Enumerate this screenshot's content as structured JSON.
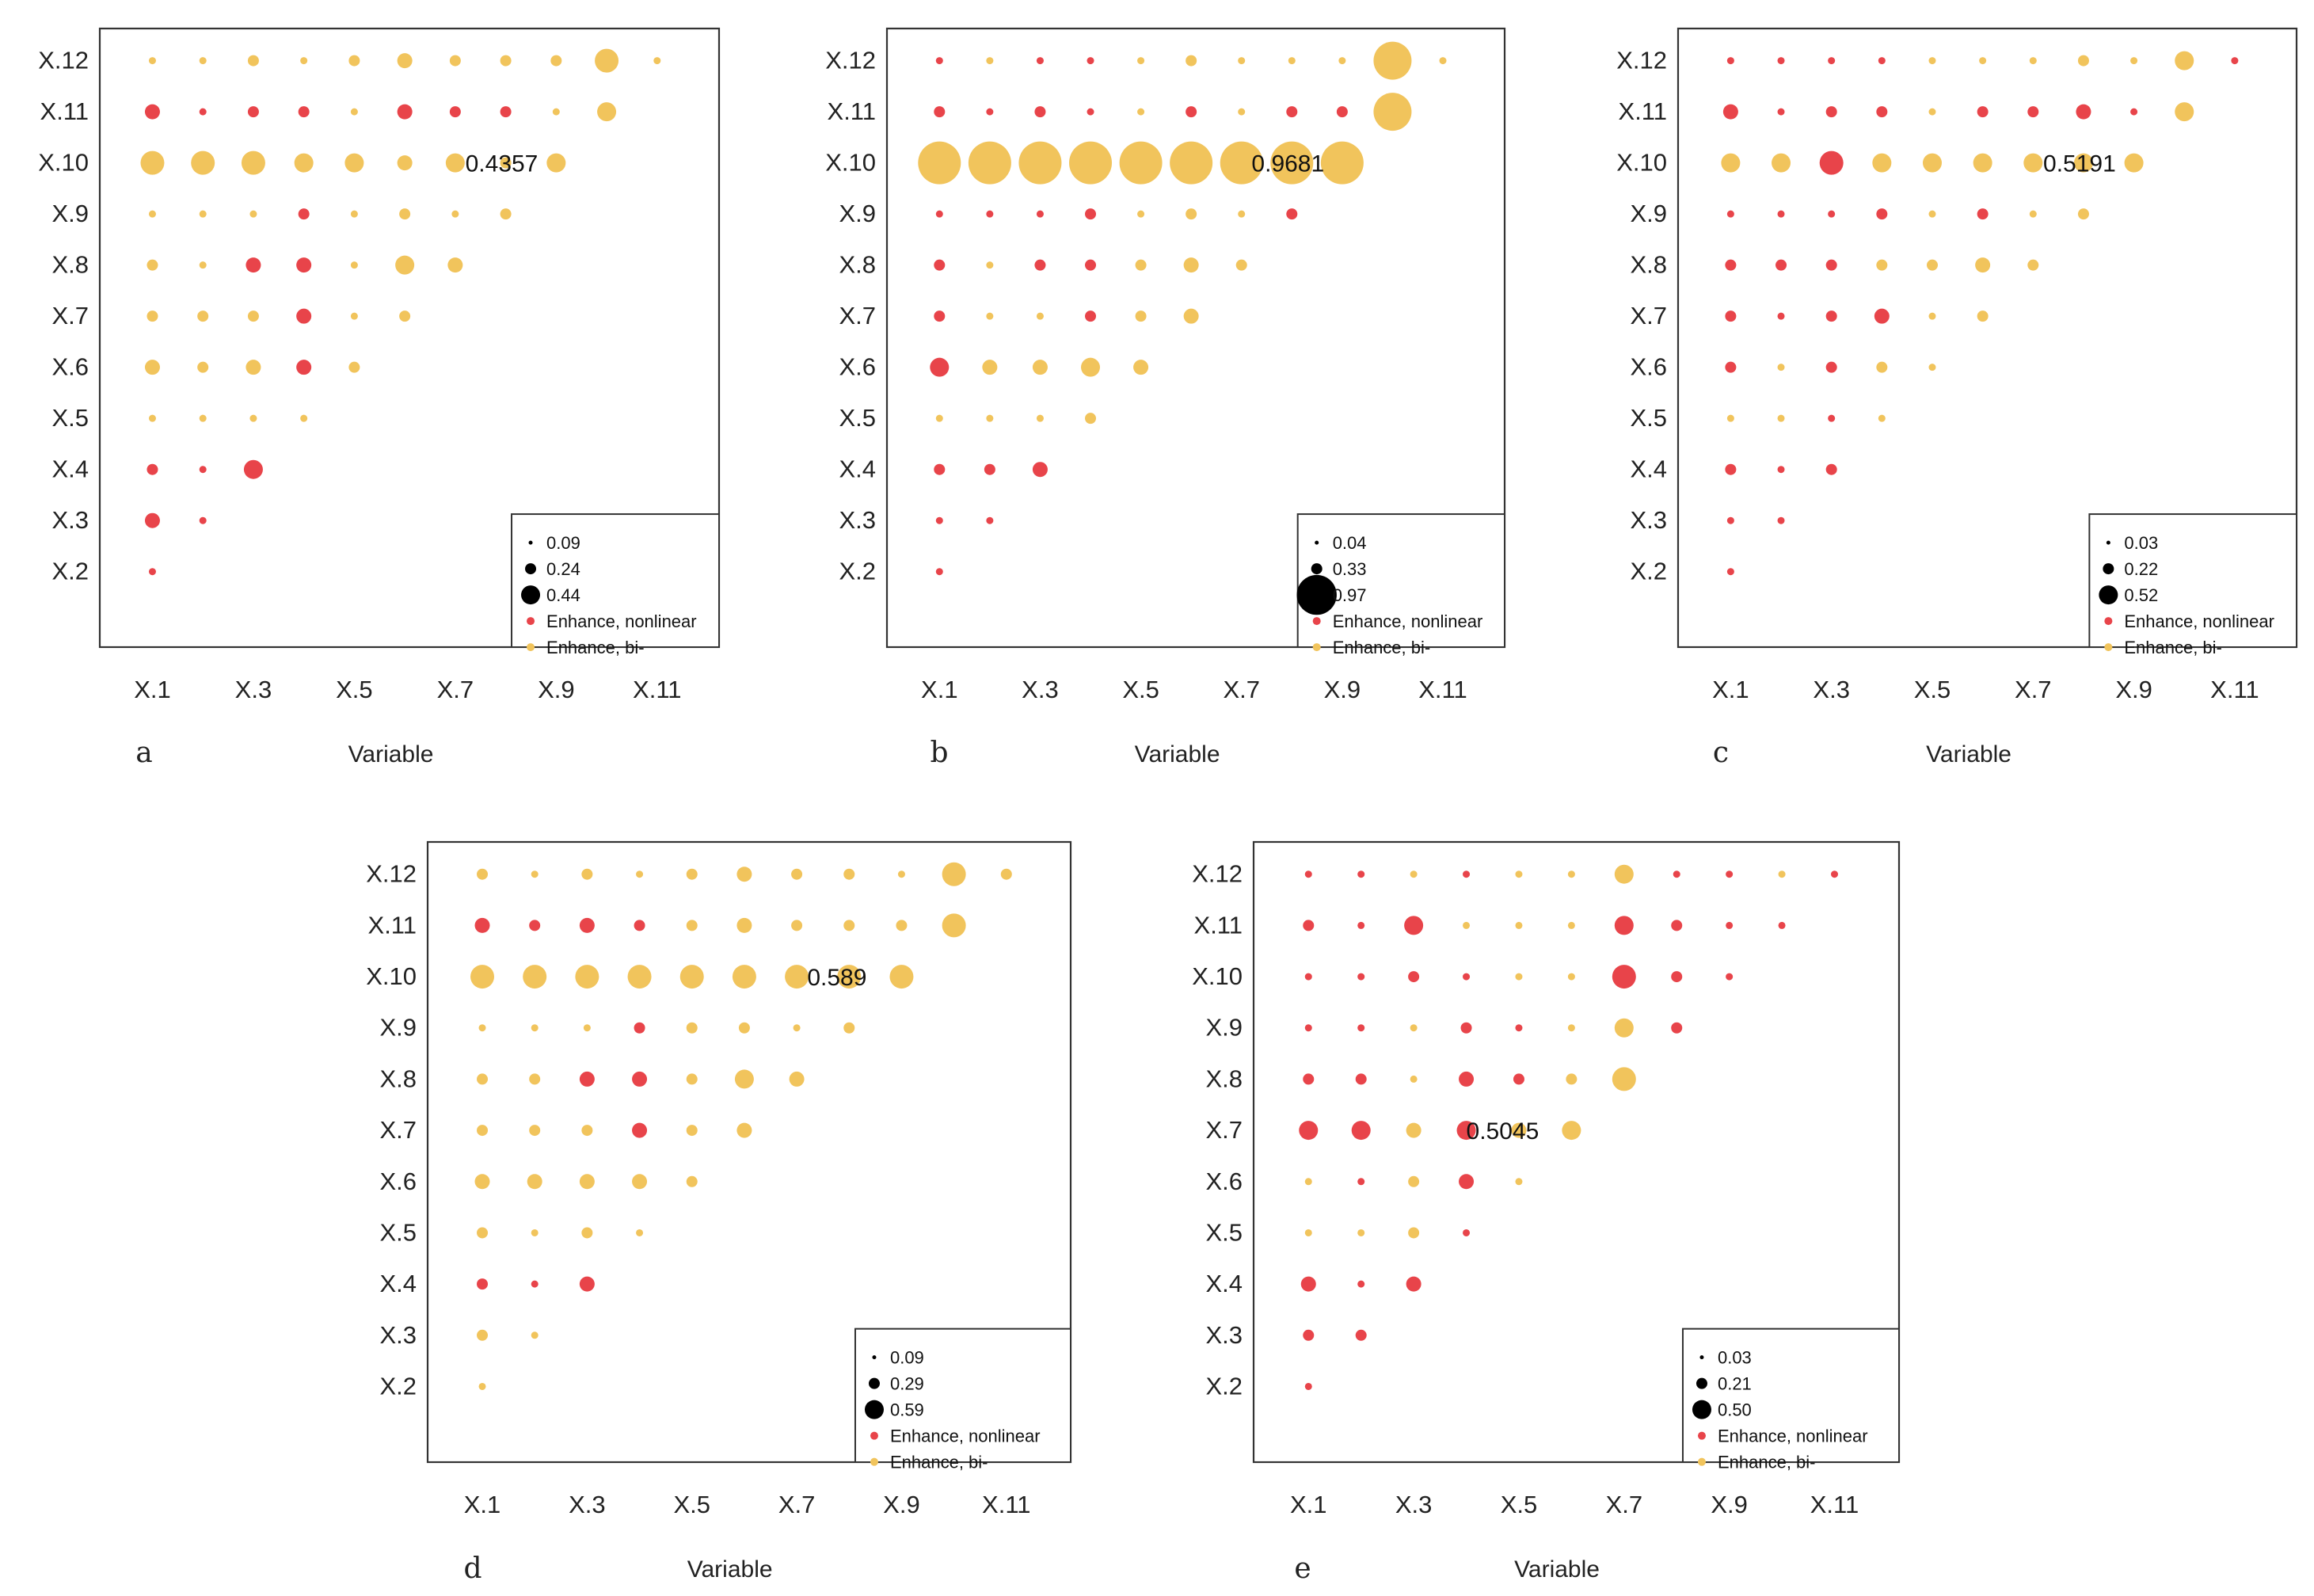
{
  "figure": {
    "colors": {
      "nonlinear": "#e8444a",
      "bi": "#f1c45c",
      "size_key": "#000000"
    },
    "x_axis_label": "Variable"
  },
  "chart_data": [
    {
      "panel": "a",
      "type": "scatter",
      "xlabel": "Variable",
      "x_ticks": [
        "X.1",
        "X.3",
        "X.5",
        "X.7",
        "X.9",
        "X.11"
      ],
      "y_ticks": [
        "X.12",
        "X.11",
        "X.10",
        "X.9",
        "X.8",
        "X.7",
        "X.6",
        "X.5",
        "X.4",
        "X.3",
        "X.2"
      ],
      "annotation": "0.4357",
      "legend": {
        "position": "bottom-right",
        "sizes": [
          "0.09",
          "0.24",
          "0.44"
        ],
        "entries": [
          "Enhance, nonlinear",
          "Enhance, bi-"
        ]
      },
      "rows": [
        {
          "y": 12,
          "c": "YYYYYYYYYYY",
          "s": [
            1,
            1,
            2,
            1,
            2,
            3,
            2,
            2,
            2,
            5,
            1
          ]
        },
        {
          "y": 11,
          "c": "RRRRYRRRYY",
          "s": [
            3,
            1,
            2,
            2,
            1,
            3,
            2,
            2,
            1,
            4
          ]
        },
        {
          "y": 10,
          "c": "YYYYYYYYY",
          "s": [
            5,
            5,
            5,
            4,
            4,
            3,
            4,
            2,
            4
          ]
        },
        {
          "y": 9,
          "c": "YYYRYYYY",
          "s": [
            1,
            1,
            1,
            2,
            1,
            2,
            1,
            2
          ]
        },
        {
          "y": 8,
          "c": "YYRRYYY",
          "s": [
            2,
            1,
            3,
            3,
            1,
            4,
            3
          ]
        },
        {
          "y": 7,
          "c": "YYYRYY",
          "s": [
            2,
            2,
            2,
            3,
            1,
            2
          ]
        },
        {
          "y": 6,
          "c": "YYYRY",
          "s": [
            3,
            2,
            3,
            3,
            2
          ]
        },
        {
          "y": 5,
          "c": "YYYY",
          "s": [
            1,
            1,
            1,
            1
          ]
        },
        {
          "y": 4,
          "c": "RRR",
          "s": [
            2,
            1,
            4
          ]
        },
        {
          "y": 3,
          "c": "RR",
          "s": [
            3,
            1
          ]
        },
        {
          "y": 2,
          "c": "R",
          "s": [
            1
          ]
        }
      ]
    },
    {
      "panel": "b",
      "type": "scatter",
      "xlabel": "Variable",
      "x_ticks": [
        "X.1",
        "X.3",
        "X.5",
        "X.7",
        "X.9",
        "X.11"
      ],
      "y_ticks": [
        "X.12",
        "X.11",
        "X.10",
        "X.9",
        "X.8",
        "X.7",
        "X.6",
        "X.5",
        "X.4",
        "X.3",
        "X.2"
      ],
      "annotation": "0.9681",
      "legend": {
        "position": "bottom-right",
        "sizes": [
          "0.04",
          "0.33",
          "0.97"
        ],
        "entries": [
          "Enhance, nonlinear",
          "Enhance, bi-"
        ]
      },
      "rows": [
        {
          "y": 12,
          "c": "RYRRYYYYYYY",
          "s": [
            1,
            1,
            1,
            1,
            1,
            2,
            1,
            1,
            1,
            8,
            1
          ]
        },
        {
          "y": 11,
          "c": "RRRRYRYRRY",
          "s": [
            2,
            1,
            2,
            1,
            1,
            2,
            1,
            2,
            2,
            8
          ]
        },
        {
          "y": 10,
          "c": "YYYYYYYYY",
          "s": [
            9,
            9,
            9,
            9,
            9,
            9,
            9,
            9,
            9
          ]
        },
        {
          "y": 9,
          "c": "RRRRYYYR",
          "s": [
            1,
            1,
            1,
            2,
            1,
            2,
            1,
            2
          ]
        },
        {
          "y": 8,
          "c": "RYRRYYY",
          "s": [
            2,
            1,
            2,
            2,
            2,
            3,
            2
          ]
        },
        {
          "y": 7,
          "c": "RYYRYY",
          "s": [
            2,
            1,
            1,
            2,
            2,
            3
          ]
        },
        {
          "y": 6,
          "c": "RYYYY",
          "s": [
            4,
            3,
            3,
            4,
            3
          ]
        },
        {
          "y": 5,
          "c": "YYYY",
          "s": [
            1,
            1,
            1,
            2
          ]
        },
        {
          "y": 4,
          "c": "RRR",
          "s": [
            2,
            2,
            3
          ]
        },
        {
          "y": 3,
          "c": "RR",
          "s": [
            1,
            1
          ]
        },
        {
          "y": 2,
          "c": "R",
          "s": [
            1
          ]
        }
      ]
    },
    {
      "panel": "c",
      "type": "scatter",
      "xlabel": "Variable",
      "x_ticks": [
        "X.1",
        "X.3",
        "X.5",
        "X.7",
        "X.9",
        "X.11"
      ],
      "y_ticks": [
        "X.12",
        "X.11",
        "X.10",
        "X.9",
        "X.8",
        "X.7",
        "X.6",
        "X.5",
        "X.4",
        "X.3",
        "X.2"
      ],
      "annotation": "0.5191",
      "legend": {
        "position": "bottom-right",
        "sizes": [
          "0.03",
          "0.22",
          "0.52"
        ],
        "entries": [
          "Enhance, nonlinear",
          "Enhance, bi-"
        ]
      },
      "rows": [
        {
          "y": 12,
          "c": "RRRRYYYYYYR",
          "s": [
            1,
            1,
            1,
            1,
            1,
            1,
            1,
            2,
            1,
            4,
            1
          ]
        },
        {
          "y": 11,
          "c": "RRRRYRRRRY",
          "s": [
            3,
            1,
            2,
            2,
            1,
            2,
            2,
            3,
            1,
            4
          ]
        },
        {
          "y": 10,
          "c": "YYRYYYYYY",
          "s": [
            4,
            4,
            5,
            4,
            4,
            4,
            4,
            4,
            4
          ]
        },
        {
          "y": 9,
          "c": "RRRRYRYY",
          "s": [
            1,
            1,
            1,
            2,
            1,
            2,
            1,
            2
          ]
        },
        {
          "y": 8,
          "c": "RRRYYYY",
          "s": [
            2,
            2,
            2,
            2,
            2,
            3,
            2
          ]
        },
        {
          "y": 7,
          "c": "RRRRYY",
          "s": [
            2,
            1,
            2,
            3,
            1,
            2
          ]
        },
        {
          "y": 6,
          "c": "RYRYY",
          "s": [
            2,
            1,
            2,
            2,
            1
          ]
        },
        {
          "y": 5,
          "c": "YYRY",
          "s": [
            1,
            1,
            1,
            1
          ]
        },
        {
          "y": 4,
          "c": "RRR",
          "s": [
            2,
            1,
            2
          ]
        },
        {
          "y": 3,
          "c": "RR",
          "s": [
            1,
            1
          ]
        },
        {
          "y": 2,
          "c": "R",
          "s": [
            1
          ]
        }
      ]
    },
    {
      "panel": "d",
      "type": "scatter",
      "xlabel": "Variable",
      "x_ticks": [
        "X.1",
        "X.3",
        "X.5",
        "X.7",
        "X.9",
        "X.11"
      ],
      "y_ticks": [
        "X.12",
        "X.11",
        "X.10",
        "X.9",
        "X.8",
        "X.7",
        "X.6",
        "X.5",
        "X.4",
        "X.3",
        "X.2"
      ],
      "annotation": "0.589",
      "legend": {
        "position": "bottom-right",
        "sizes": [
          "0.09",
          "0.29",
          "0.59"
        ],
        "entries": [
          "Enhance, nonlinear",
          "Enhance, bi-"
        ]
      },
      "rows": [
        {
          "y": 12,
          "c": "YYYYYYYYYYY",
          "s": [
            2,
            1,
            2,
            1,
            2,
            3,
            2,
            2,
            1,
            5,
            2
          ]
        },
        {
          "y": 11,
          "c": "RRRRYYYYYY",
          "s": [
            3,
            2,
            3,
            2,
            2,
            3,
            2,
            2,
            2,
            5
          ]
        },
        {
          "y": 10,
          "c": "YYYYYYYYY",
          "s": [
            5,
            5,
            5,
            5,
            5,
            5,
            5,
            5,
            5
          ]
        },
        {
          "y": 9,
          "c": "YYYRYYYY",
          "s": [
            1,
            1,
            1,
            2,
            2,
            2,
            1,
            2
          ]
        },
        {
          "y": 8,
          "c": "YYRRYYY",
          "s": [
            2,
            2,
            3,
            3,
            2,
            4,
            3
          ]
        },
        {
          "y": 7,
          "c": "YYYRYY",
          "s": [
            2,
            2,
            2,
            3,
            2,
            3
          ]
        },
        {
          "y": 6,
          "c": "YYYYY",
          "s": [
            3,
            3,
            3,
            3,
            2
          ]
        },
        {
          "y": 5,
          "c": "YYYY",
          "s": [
            2,
            1,
            2,
            1
          ]
        },
        {
          "y": 4,
          "c": "RRR",
          "s": [
            2,
            1,
            3
          ]
        },
        {
          "y": 3,
          "c": "YY",
          "s": [
            2,
            1
          ]
        },
        {
          "y": 2,
          "c": "Y",
          "s": [
            1
          ]
        }
      ]
    },
    {
      "panel": "e",
      "type": "scatter",
      "xlabel": "Variable",
      "x_ticks": [
        "X.1",
        "X.3",
        "X.5",
        "X.7",
        "X.9",
        "X.11"
      ],
      "y_ticks": [
        "X.12",
        "X.11",
        "X.10",
        "X.9",
        "X.8",
        "X.7",
        "X.6",
        "X.5",
        "X.4",
        "X.3",
        "X.2"
      ],
      "annotation": "0.5045",
      "legend": {
        "position": "bottom-right",
        "sizes": [
          "0.03",
          "0.21",
          "0.50"
        ],
        "entries": [
          "Enhance, nonlinear",
          "Enhance, bi-"
        ]
      },
      "rows": [
        {
          "y": 12,
          "c": "RRYRYYYRRYR",
          "s": [
            1,
            1,
            1,
            1,
            1,
            1,
            4,
            1,
            1,
            1,
            1
          ]
        },
        {
          "y": 11,
          "c": "RRRYYYRRRR",
          "s": [
            2,
            1,
            4,
            1,
            1,
            1,
            4,
            2,
            1,
            1
          ]
        },
        {
          "y": 10,
          "c": "RRRRYYRRR",
          "s": [
            1,
            1,
            2,
            1,
            1,
            1,
            5,
            2,
            1
          ]
        },
        {
          "y": 9,
          "c": "RRYRRYYR",
          "s": [
            1,
            1,
            1,
            2,
            1,
            1,
            4,
            2
          ]
        },
        {
          "y": 8,
          "c": "RRYRRYY",
          "s": [
            2,
            2,
            1,
            3,
            2,
            2,
            5
          ]
        },
        {
          "y": 7,
          "c": "RRYRYY",
          "s": [
            4,
            4,
            3,
            4,
            3,
            4
          ]
        },
        {
          "y": 6,
          "c": "YRYRY",
          "s": [
            1,
            1,
            2,
            3,
            1
          ]
        },
        {
          "y": 5,
          "c": "YYYR",
          "s": [
            1,
            1,
            2,
            1
          ]
        },
        {
          "y": 4,
          "c": "RRR",
          "s": [
            3,
            1,
            3
          ]
        },
        {
          "y": 3,
          "c": "RR",
          "s": [
            2,
            2
          ]
        },
        {
          "y": 2,
          "c": "R",
          "s": [
            1
          ]
        }
      ]
    }
  ]
}
